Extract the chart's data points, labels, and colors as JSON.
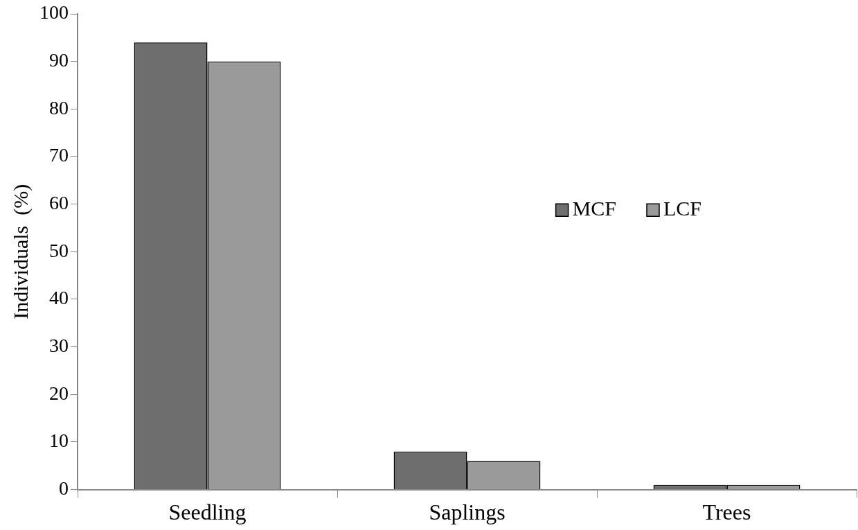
{
  "chart_data": {
    "type": "bar",
    "ylabel": "Individuals  (%)",
    "categories": [
      "Seedling",
      "Saplings",
      "Trees"
    ],
    "series": [
      {
        "name": "MCF",
        "color": "#6e6e6e",
        "values": [
          94,
          8,
          1
        ]
      },
      {
        "name": "LCF",
        "color": "#9a9a9a",
        "values": [
          90,
          6,
          1
        ]
      }
    ],
    "ylim": [
      0,
      100
    ],
    "yticks": [
      0,
      10,
      20,
      30,
      40,
      50,
      60,
      70,
      80,
      90,
      100
    ],
    "grid": false,
    "legend": "right"
  }
}
